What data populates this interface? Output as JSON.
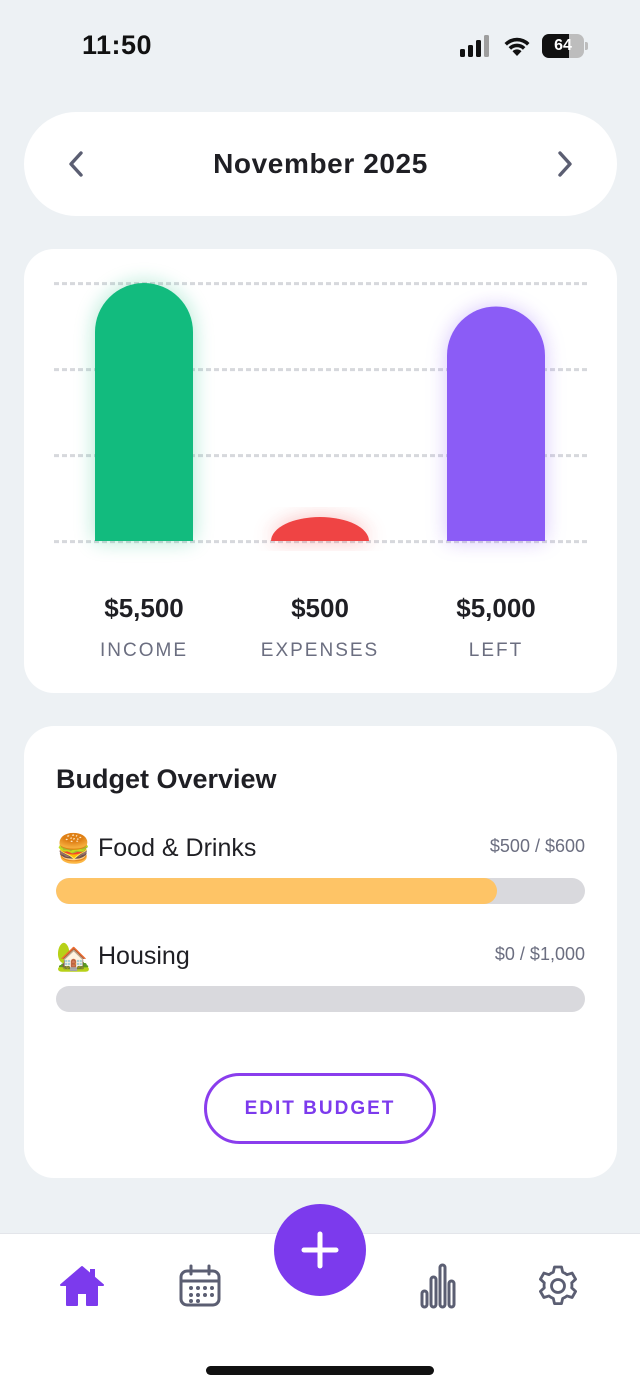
{
  "status_bar": {
    "time": "11:50",
    "battery_level": "64",
    "battery_fraction": 0.64,
    "icons": [
      "cellular-signal-icon",
      "wifi-icon",
      "battery-icon"
    ]
  },
  "month_selector": {
    "title": "November 2025",
    "prev_icon": "chevron-left-icon",
    "next_icon": "chevron-right-icon"
  },
  "summary": {
    "items": [
      {
        "value": "$5,500",
        "label": "INCOME",
        "amount": 5500,
        "color": "#12bb7e"
      },
      {
        "value": "$500",
        "label": "EXPENSES",
        "amount": 500,
        "color": "#ef4444"
      },
      {
        "value": "$5,000",
        "label": "LEFT",
        "amount": 5000,
        "color": "#8b5cf6"
      }
    ]
  },
  "chart_data": {
    "type": "bar",
    "categories": [
      "INCOME",
      "EXPENSES",
      "LEFT"
    ],
    "values": [
      5500,
      500,
      5000
    ],
    "ylim": [
      0,
      5500
    ],
    "grid": true,
    "colors": [
      "#12bb7e",
      "#ef4444",
      "#8b5cf6"
    ]
  },
  "budget": {
    "title": "Budget Overview",
    "items": [
      {
        "emoji": "🍔",
        "name": "Food & Drinks",
        "amount": "$500 / $600",
        "spent": 500,
        "limit": 600
      },
      {
        "emoji": "🏡",
        "name": "Housing",
        "amount": "$0 / $1,000",
        "spent": 0,
        "limit": 1000
      }
    ],
    "edit_label": "EDIT BUDGET",
    "bar_color": "#fec466",
    "track_color": "#d9d9dd"
  },
  "tab_bar": {
    "items": [
      "home-icon",
      "calendar-icon",
      "add-icon",
      "stats-icon",
      "settings-icon"
    ],
    "active": "home-icon",
    "accent": "#7c3aed",
    "inactive": "#5b5e72"
  }
}
